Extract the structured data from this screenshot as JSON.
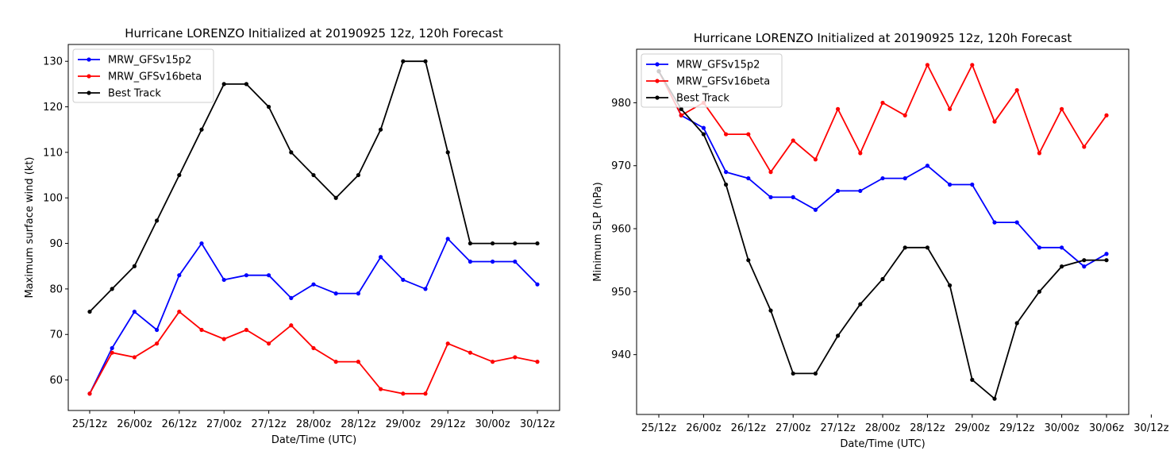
{
  "colors": {
    "MRW_GFSv15p2": "#0000ff",
    "MRW_GFSv16beta": "#ff0000",
    "Best Track": "#000000"
  },
  "chart_data": [
    {
      "type": "line",
      "title": "Hurricane LORENZO Initialized at 20190925 12z, 120h Forecast",
      "xlabel": "Date/Time (UTC)",
      "ylabel": "Maximum surface wind (kt)",
      "x": [
        "25/12z",
        "25/18z",
        "26/00z",
        "26/06z",
        "26/12z",
        "26/18z",
        "27/00z",
        "27/06z",
        "27/12z",
        "27/18z",
        "28/00z",
        "28/06z",
        "28/12z",
        "28/18z",
        "29/00z",
        "29/06z",
        "29/12z",
        "29/18z",
        "30/00z",
        "30/06z",
        "30/12z"
      ],
      "x_tick_labels": [
        "25/12z",
        "26/00z",
        "26/12z",
        "27/00z",
        "27/12z",
        "28/00z",
        "28/12z",
        "29/00z",
        "29/12z",
        "30/00z",
        "30/12z"
      ],
      "ylim": [
        53.3,
        133.7
      ],
      "y_ticks": [
        60,
        70,
        80,
        90,
        100,
        110,
        120,
        130
      ],
      "legend_position": "upper-left",
      "series": [
        {
          "name": "MRW_GFSv15p2",
          "values": [
            57,
            67,
            75,
            71,
            83,
            90,
            82,
            83,
            83,
            78,
            81,
            79,
            79,
            87,
            82,
            80,
            91,
            86,
            86,
            86,
            81
          ]
        },
        {
          "name": "MRW_GFSv16beta",
          "values": [
            57,
            66,
            65,
            68,
            75,
            71,
            69,
            71,
            68,
            72,
            67,
            64,
            64,
            58,
            57,
            57,
            68,
            66,
            64,
            65,
            64
          ]
        },
        {
          "name": "Best Track",
          "values": [
            75,
            80,
            85,
            95,
            105,
            115,
            125,
            125,
            120,
            110,
            105,
            100,
            105,
            115,
            130,
            130,
            110,
            90,
            90,
            90,
            90
          ]
        }
      ]
    },
    {
      "type": "line",
      "title": "Hurricane LORENZO Initialized at 20190925 12z, 120h Forecast",
      "xlabel": "Date/Time (UTC)",
      "ylabel": "Minimum SLP (hPa)",
      "x": [
        "25/12z",
        "25/18z",
        "26/00z",
        "26/06z",
        "26/12z",
        "26/18z",
        "27/00z",
        "27/06z",
        "27/12z",
        "27/18z",
        "28/00z",
        "28/06z",
        "28/12z",
        "28/18z",
        "29/00z",
        "29/06z",
        "29/12z",
        "29/18z",
        "30/00z",
        "30/06z",
        "30/12z"
      ],
      "x_tick_labels": [
        "25/12z",
        "26/00z",
        "26/12z",
        "27/00z",
        "27/12z",
        "28/00z",
        "28/12z",
        "29/00z",
        "29/12z",
        "30/00z",
        "30/06z",
        "30/12z"
      ],
      "ylim": [
        930.5,
        988.5
      ],
      "y_ticks": [
        940,
        950,
        960,
        970,
        980
      ],
      "legend_position": "upper-left",
      "series": [
        {
          "name": "MRW_GFSv15p2",
          "values": [
            985,
            978,
            976,
            969,
            968,
            965,
            965,
            963,
            966,
            966,
            968,
            968,
            970,
            967,
            967,
            961,
            961,
            957,
            957,
            954,
            956
          ]
        },
        {
          "name": "MRW_GFSv16beta",
          "values": [
            985,
            978,
            980,
            975,
            975,
            969,
            974,
            971,
            979,
            972,
            980,
            978,
            986,
            979,
            986,
            977,
            982,
            972,
            979,
            973,
            978
          ]
        },
        {
          "name": "Best Track",
          "values": [
            985,
            979,
            975,
            967,
            955,
            947,
            937,
            937,
            943,
            948,
            952,
            957,
            957,
            951,
            936,
            933,
            945,
            950,
            954,
            955,
            955
          ]
        }
      ]
    }
  ]
}
